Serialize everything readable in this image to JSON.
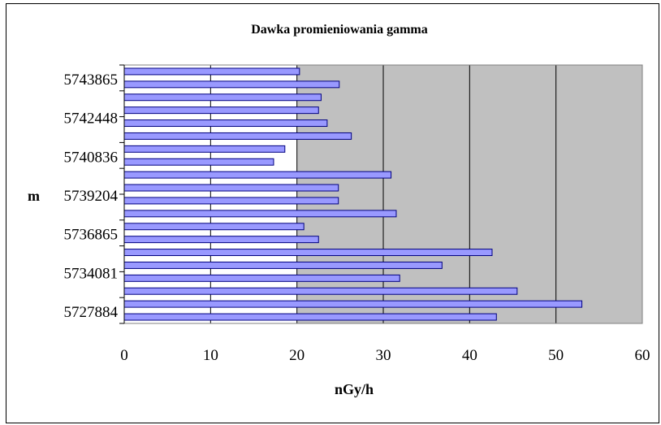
{
  "chart_data": {
    "type": "bar",
    "orientation": "horizontal",
    "title": "Dawka promieniowania gamma",
    "xlabel": "nGy/h",
    "ylabel": "m",
    "xlim": [
      0,
      60
    ],
    "x_ticks": [
      "0",
      "10",
      "20",
      "30",
      "40",
      "50",
      "60"
    ],
    "category_tick_labels": [
      "5743865",
      "5742448",
      "5740836",
      "5739204",
      "5736865",
      "5734081",
      "5727884"
    ],
    "values_top_to_bottom": [
      20.3,
      24.9,
      22.8,
      22.5,
      23.5,
      26.3,
      18.6,
      17.3,
      30.9,
      24.8,
      24.8,
      31.5,
      20.8,
      22.5,
      42.6,
      36.8,
      31.9,
      45.5,
      53.0,
      43.1
    ],
    "grid": "vertical major gridlines",
    "legend": "none",
    "colors": {
      "plot_area": "#c0c0c0",
      "bar_fill": "#9999ff",
      "bar_stroke": "#000080",
      "gridline": "#000000",
      "frame": "#000000"
    }
  }
}
